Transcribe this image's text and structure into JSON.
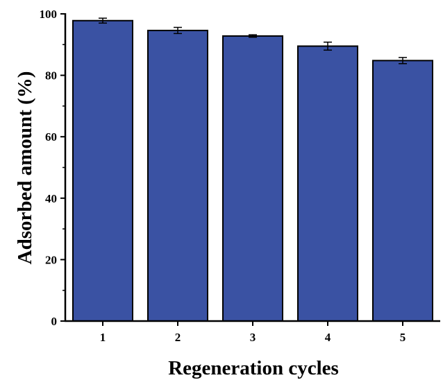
{
  "chart_data": {
    "type": "bar",
    "categories": [
      "1",
      "2",
      "3",
      "4",
      "5"
    ],
    "values": [
      97.8,
      94.6,
      92.8,
      89.5,
      84.8
    ],
    "errors": [
      0.8,
      1.0,
      0.4,
      1.3,
      1.0
    ],
    "title": "",
    "xlabel": "Regeneration cycles",
    "ylabel": "Adsorbed amount (%)",
    "ylim": [
      0,
      100
    ],
    "yticks": [
      "0",
      "20",
      "40",
      "60",
      "80",
      "100"
    ],
    "grid": false,
    "colors": {
      "bar": "#3a52a3",
      "outline": "#000000",
      "background": "#ffffff"
    }
  }
}
